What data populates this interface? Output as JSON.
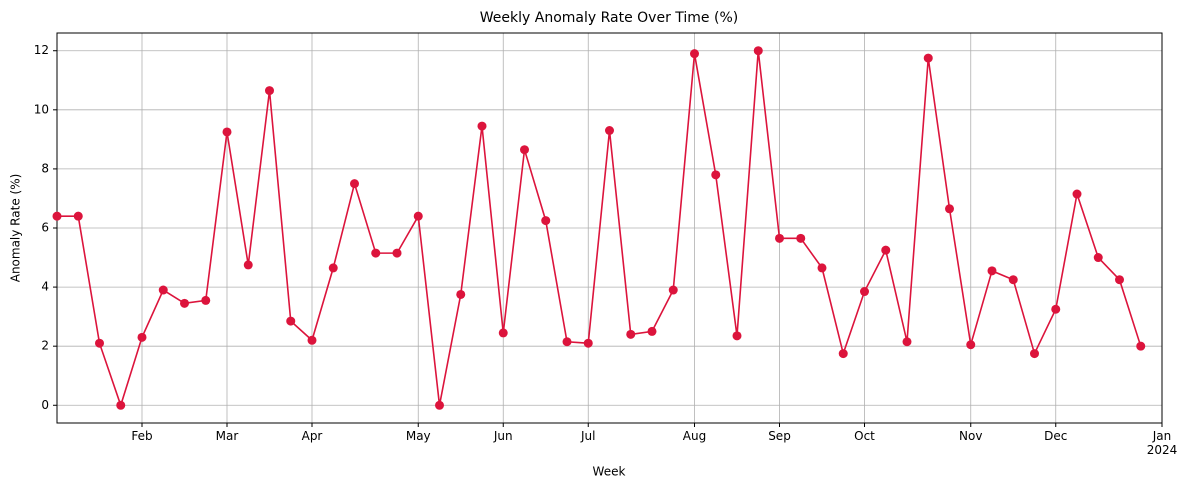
{
  "chart_data": {
    "type": "line",
    "title": "Weekly Anomaly Rate Over Time (%)",
    "xlabel": "Week",
    "ylabel": "Anomaly Rate (%)",
    "series": [
      {
        "name": "Anomaly Rate (%)",
        "color": "#dc143c",
        "values": [
          6.4,
          6.4,
          2.1,
          0,
          2.3,
          3.9,
          3.45,
          3.55,
          9.25,
          4.75,
          10.65,
          2.85,
          2.2,
          4.65,
          7.5,
          5.15,
          5.15,
          6.4,
          0,
          3.75,
          9.45,
          2.45,
          8.65,
          6.25,
          2.15,
          2.1,
          9.3,
          2.4,
          2.5,
          3.9,
          11.9,
          7.8,
          2.35,
          12.0,
          5.65,
          5.65,
          4.65,
          1.75,
          3.85,
          5.25,
          2.15,
          11.75,
          6.65,
          2.05,
          4.55,
          4.25,
          1.75,
          3.25,
          7.15,
          5.0,
          4.25,
          2.0
        ]
      }
    ],
    "xlim": [
      0,
      52
    ],
    "xticks": [
      {
        "value": 4,
        "label": "Feb"
      },
      {
        "value": 8,
        "label": "Mar"
      },
      {
        "value": 12,
        "label": "Apr"
      },
      {
        "value": 17,
        "label": "May"
      },
      {
        "value": 21,
        "label": "Jun"
      },
      {
        "value": 25,
        "label": "Jul"
      },
      {
        "value": 30,
        "label": "Aug"
      },
      {
        "value": 34,
        "label": "Sep"
      },
      {
        "value": 38,
        "label": "Oct"
      },
      {
        "value": 43,
        "label": "Nov"
      },
      {
        "value": 47,
        "label": "Dec"
      },
      {
        "value": 52,
        "label": "Jan\n2024"
      }
    ],
    "ylim": [
      -0.6,
      12.6
    ],
    "yticks": [
      0,
      2,
      4,
      6,
      8,
      10,
      12
    ],
    "grid": true
  }
}
